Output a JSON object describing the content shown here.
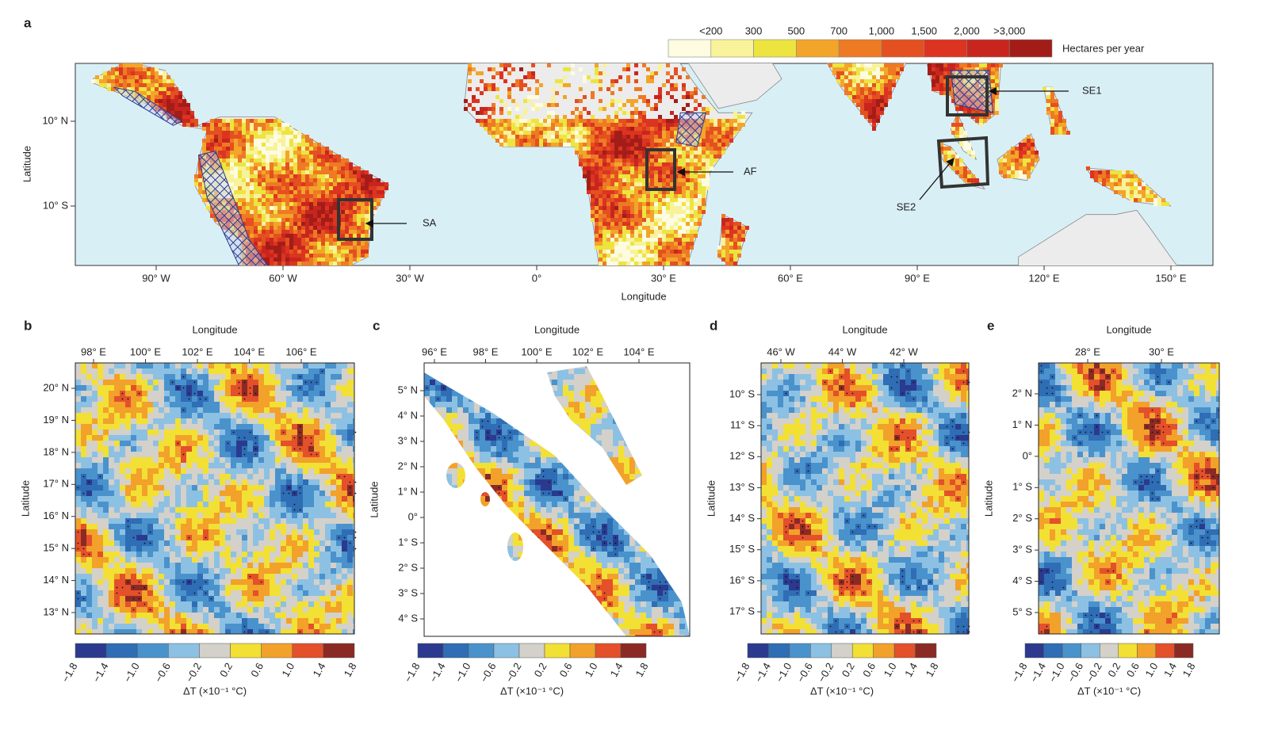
{
  "panel_a": {
    "letter": "a",
    "colorbar": {
      "labels": [
        "<200",
        "300",
        "500",
        "700",
        "1,000",
        "1,500",
        "2,000",
        ">3,000"
      ],
      "colors": [
        "#fdfbe0",
        "#f8f29a",
        "#ede440",
        "#f3a52a",
        "#ee7a24",
        "#e4501f",
        "#dc3421",
        "#c8251f",
        "#a31d18"
      ],
      "unit": "Hectares per year"
    },
    "lat_ticks": [
      "10° N",
      "10° S"
    ],
    "lon_ticks": [
      "90° W",
      "60° W",
      "30° W",
      "0°",
      "30° E",
      "60° E",
      "90° E",
      "120° E",
      "150° E"
    ],
    "x_label": "Longitude",
    "y_label": "Latitude",
    "regions": [
      "SA",
      "AF",
      "SE1",
      "SE2"
    ]
  },
  "panels": [
    {
      "letter": "b",
      "x_label": "Longitude",
      "y_label": "Latitude",
      "lon_ticks": [
        "98° E",
        "100° E",
        "102° E",
        "104° E",
        "106° E"
      ],
      "lat_ticks": [
        "20° N",
        "19° N",
        "18° N",
        "17° N",
        "16° N",
        "15° N",
        "14° N",
        "13° N"
      ]
    },
    {
      "letter": "c",
      "x_label": "Longitude",
      "y_label": "Latitude",
      "lon_ticks": [
        "96° E",
        "98° E",
        "100° E",
        "102° E",
        "104° E"
      ],
      "lat_ticks": [
        "5° N",
        "4° N",
        "3° N",
        "2° N",
        "1° N",
        "0°",
        "1° S",
        "2° S",
        "3° S",
        "4° S"
      ]
    },
    {
      "letter": "d",
      "x_label": "Longitude",
      "y_label": "Latitude",
      "lon_ticks": [
        "46° W",
        "44° W",
        "42° W"
      ],
      "lat_ticks": [
        "10° S",
        "11° S",
        "12° S",
        "13° S",
        "14° S",
        "15° S",
        "16° S",
        "17° S"
      ]
    },
    {
      "letter": "e",
      "x_label": "Longitude",
      "y_label": "Latitude",
      "lon_ticks": [
        "28° E",
        "30° E"
      ],
      "lat_ticks": [
        "2° N",
        "1° N",
        "0°",
        "1° S",
        "2° S",
        "3° S",
        "4° S",
        "5° S"
      ]
    }
  ],
  "colorbar": {
    "labels": [
      "−1.8",
      "−1.4",
      "−1.0",
      "−0.6",
      "−0.2",
      "0.2",
      "0.6",
      "1.0",
      "1.4",
      "1.8"
    ],
    "colors": [
      "#2b3a8f",
      "#2f6db5",
      "#4a92cc",
      "#8cc1e3",
      "#d4d0ca",
      "#f2e034",
      "#f2a12a",
      "#e4502a",
      "#8b2a25"
    ],
    "unit": "ΔT (×10⁻¹ °C)"
  }
}
